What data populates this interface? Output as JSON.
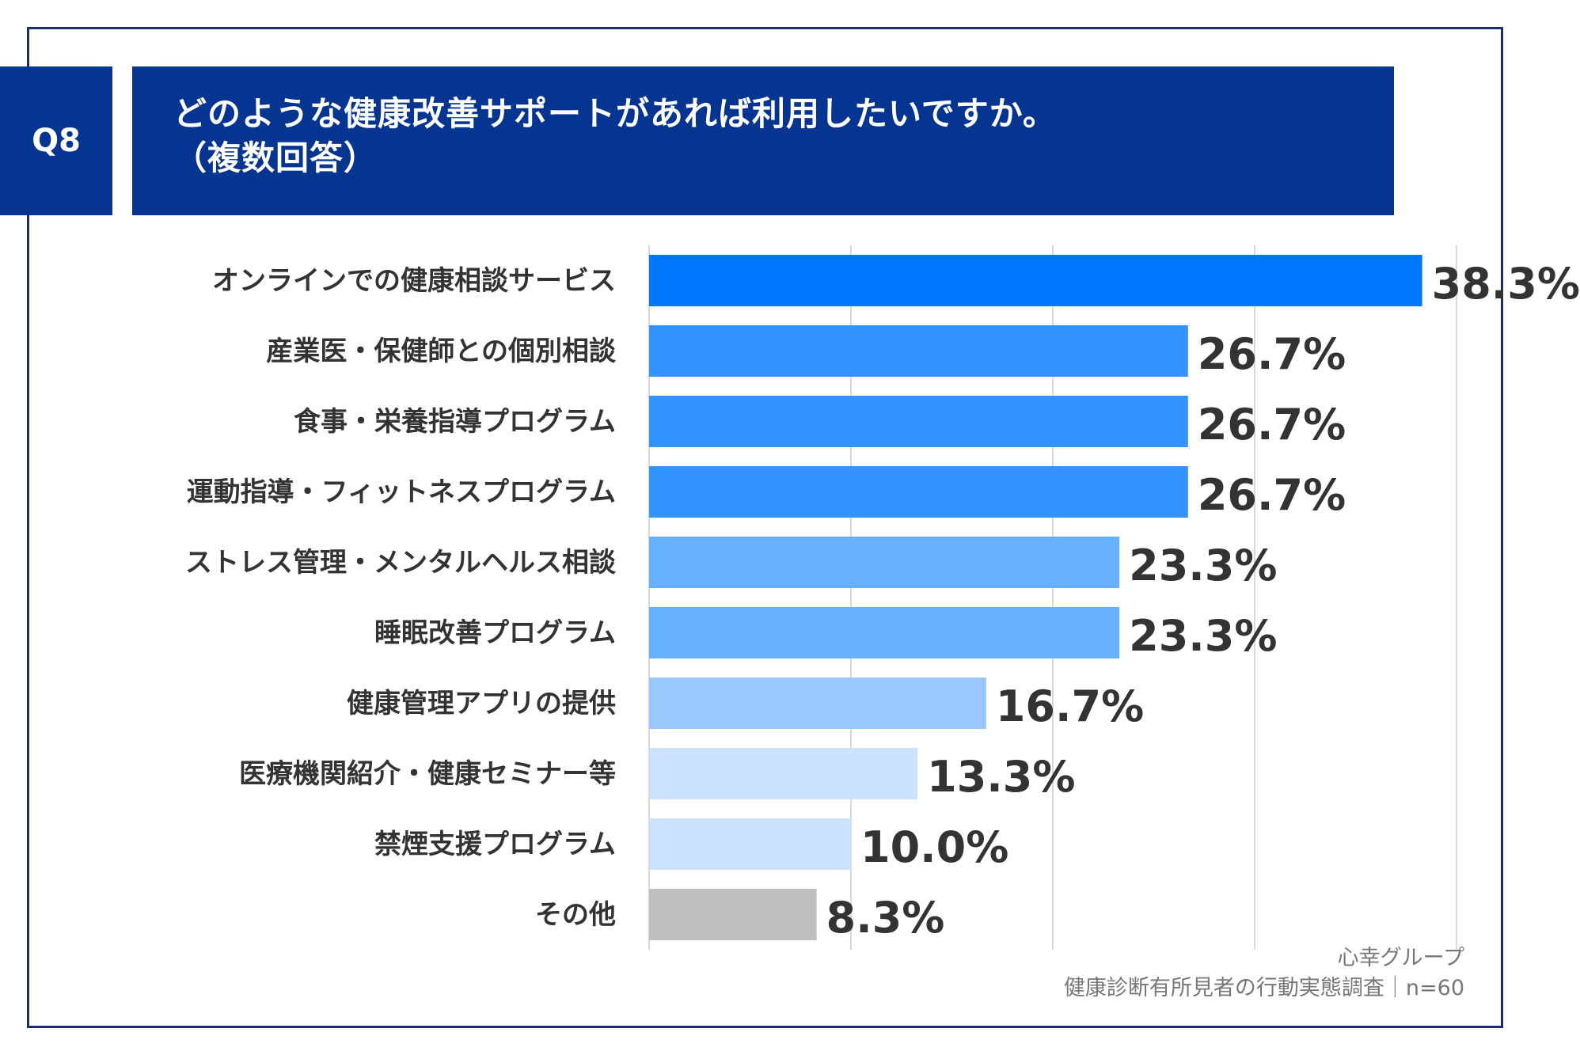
{
  "header": {
    "question_badge": "Q8",
    "title_line1": "どのような健康改善サポートがあれば利用したいですか。",
    "title_line2": "（複数回答）"
  },
  "colors": {
    "header_bg": "#063591",
    "frame": "#1b2f6e",
    "grid": "#d9d9d9",
    "label_text": "#333333"
  },
  "chart_data": {
    "type": "bar",
    "orientation": "horizontal",
    "categories": [
      "オンラインでの健康相談サービス",
      "産業医・保健師との個別相談",
      "食事・栄養指導プログラム",
      "運動指導・フィットネスプログラム",
      "ストレス管理・メンタルヘルス相談",
      "睡眠改善プログラム",
      "健康管理アプリの提供",
      "医療機関紹介・健康セミナー等",
      "禁煙支援プログラム",
      "その他"
    ],
    "values": [
      38.3,
      26.7,
      26.7,
      26.7,
      23.3,
      23.3,
      16.7,
      13.3,
      10.0,
      8.3
    ],
    "value_labels": [
      "38.3%",
      "26.7%",
      "26.7%",
      "26.7%",
      "23.3%",
      "23.3%",
      "16.7%",
      "13.3%",
      "10.0%",
      "8.3%"
    ],
    "bar_colors": [
      "#0077ff",
      "#3393ff",
      "#3393ff",
      "#3393ff",
      "#66b0ff",
      "#66b0ff",
      "#99c8ff",
      "#cce3ff",
      "#cce3ff",
      "#bfbfbf"
    ],
    "xlim": [
      0,
      40
    ],
    "gridlines": [
      0,
      10,
      20,
      30,
      40
    ],
    "unit": "%"
  },
  "source": {
    "line1": "心幸グループ",
    "line2": "健康診断有所見者の行動実態調査｜n=60"
  }
}
